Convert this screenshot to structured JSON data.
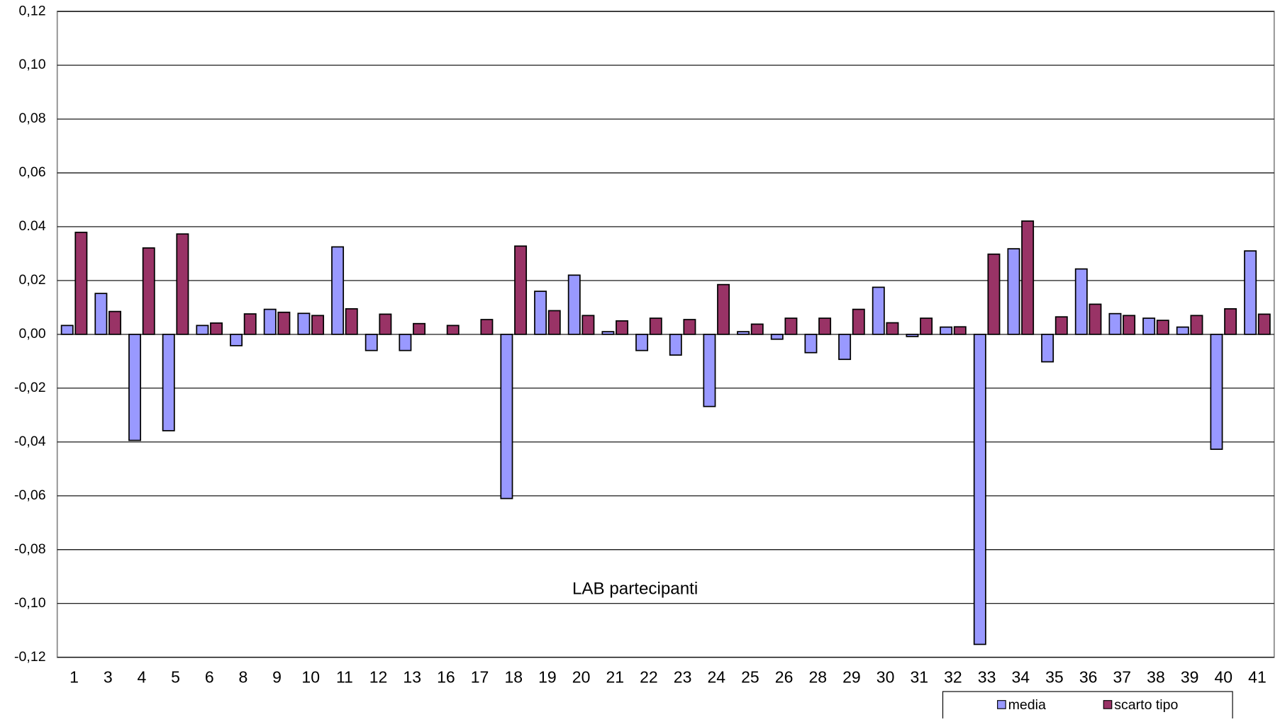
{
  "chart_data": {
    "type": "bar",
    "categories": [
      "1",
      "3",
      "4",
      "5",
      "6",
      "8",
      "9",
      "10",
      "11",
      "12",
      "13",
      "16",
      "17",
      "18",
      "19",
      "20",
      "21",
      "22",
      "23",
      "24",
      "25",
      "26",
      "28",
      "29",
      "30",
      "31",
      "32",
      "33",
      "34",
      "35",
      "36",
      "37",
      "38",
      "39",
      "40",
      "41"
    ],
    "series": [
      {
        "name": "media",
        "color": "#9999ff",
        "values": [
          0.0033,
          0.0152,
          -0.0394,
          -0.0358,
          0.0033,
          -0.0042,
          0.0093,
          0.0078,
          0.0325,
          -0.006,
          -0.006,
          0,
          0,
          -0.061,
          0.016,
          0.022,
          0.001,
          -0.006,
          -0.0077,
          -0.0268,
          0.001,
          -0.0018,
          -0.0068,
          -0.0093,
          0.0175,
          -0.0008,
          0.0027,
          -0.1152,
          0.0318,
          -0.0102,
          0.0243,
          0.0077,
          0.006,
          0.0027,
          -0.0427,
          0.031
        ]
      },
      {
        "name": "scarto tipo",
        "color": "#993366",
        "values": [
          0.0379,
          0.0085,
          0.0321,
          0.0373,
          0.0042,
          0.0076,
          0.0082,
          0.007,
          0.0095,
          0.0075,
          0.004,
          0.0033,
          0.0055,
          0.0328,
          0.0088,
          0.007,
          0.005,
          0.006,
          0.0055,
          0.0185,
          0.0038,
          0.006,
          0.006,
          0.0093,
          0.0043,
          0.006,
          0.0028,
          0.0298,
          0.0421,
          0.0065,
          0.0112,
          0.007,
          0.0052,
          0.007,
          0.0095,
          0.0075
        ]
      }
    ],
    "x_label": "LAB partecipanti",
    "ylim": [
      -0.12,
      0.12
    ],
    "yticks": [
      {
        "value": -0.12,
        "label": "-0,12"
      },
      {
        "value": -0.1,
        "label": "-0,10"
      },
      {
        "value": -0.08,
        "label": "-0,08"
      },
      {
        "value": -0.06,
        "label": "-0,06"
      },
      {
        "value": -0.04,
        "label": "-0,04"
      },
      {
        "value": -0.02,
        "label": "-0,02"
      },
      {
        "value": 0,
        "label": "0,00"
      },
      {
        "value": 0.02,
        "label": "0,02"
      },
      {
        "value": 0.04,
        "label": "0.04"
      },
      {
        "value": 0.06,
        "label": "0,06"
      },
      {
        "value": 0.08,
        "label": "0,08"
      },
      {
        "value": 0.1,
        "label": "0,10"
      },
      {
        "value": 0.12,
        "label": "0,12"
      }
    ],
    "grid": true,
    "legend": "bottom"
  }
}
